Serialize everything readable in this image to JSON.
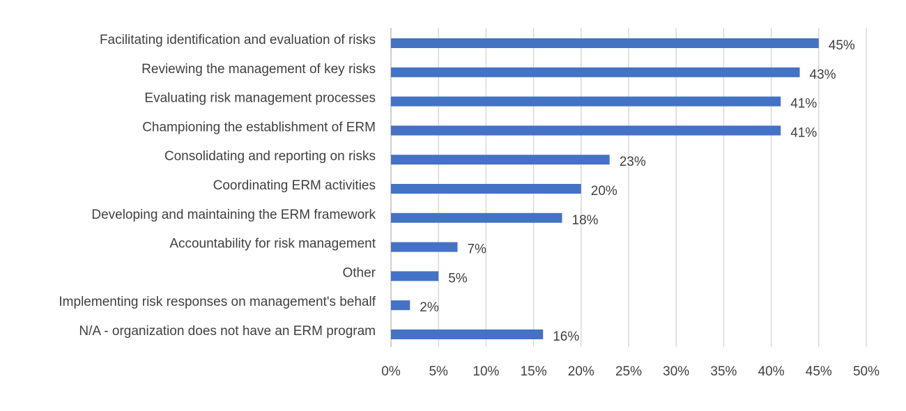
{
  "chart_data": {
    "type": "bar",
    "orientation": "horizontal",
    "categories": [
      "Facilitating identification and evaluation of risks",
      "Reviewing the management of key risks",
      "Evaluating risk management processes",
      "Championing the establishment of ERM",
      "Consolidating and reporting on risks",
      "Coordinating ERM activities",
      "Developing and maintaining the ERM framework",
      "Accountability for risk management",
      "Other",
      "Implementing risk responses on management's behalf",
      "N/A - organization does not have an ERM program"
    ],
    "values": [
      45,
      43,
      41,
      41,
      23,
      20,
      18,
      7,
      5,
      2,
      16
    ],
    "data_labels": [
      "45%",
      "43%",
      "41%",
      "41%",
      "23%",
      "20%",
      "18%",
      "7%",
      "5%",
      "2%",
      "16%"
    ],
    "x_ticks": [
      "0%",
      "5%",
      "10%",
      "15%",
      "20%",
      "25%",
      "30%",
      "35%",
      "40%",
      "45%",
      "50%"
    ],
    "xlim": [
      0,
      50
    ],
    "grid": "vertical",
    "legend": "none",
    "bar_color": "#4472C4",
    "gridline_color": "#D9D9D9",
    "text_color": "#404040"
  }
}
